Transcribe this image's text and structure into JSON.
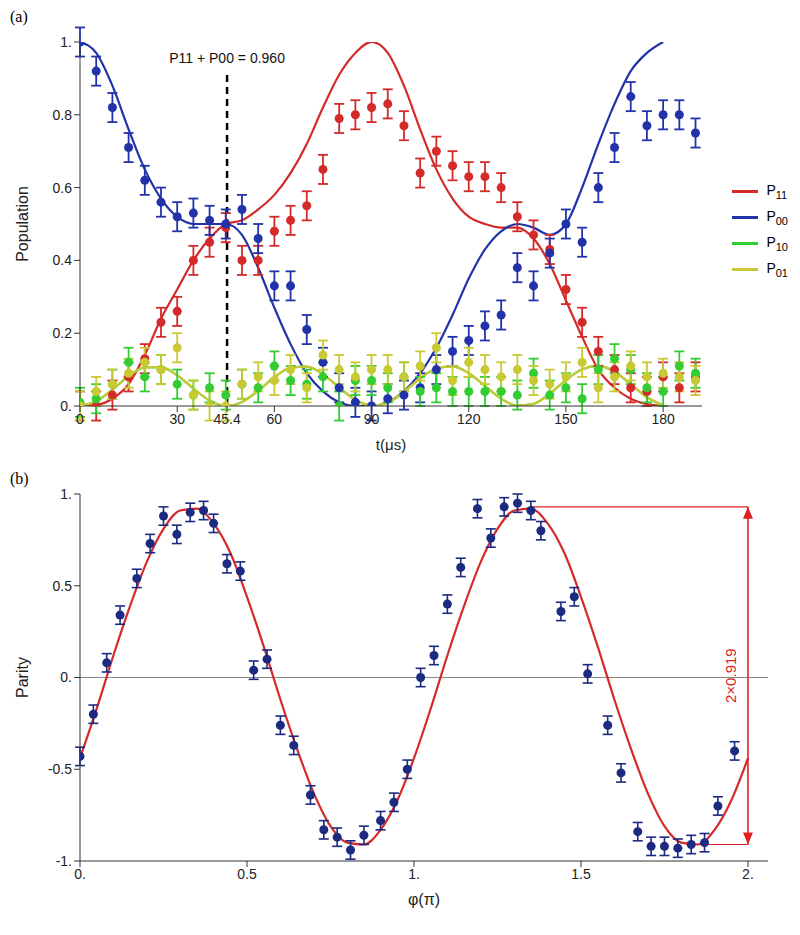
{
  "chart_data": [
    {
      "type": "scatter",
      "panel_label": "(a)",
      "x_label": "t(μs)",
      "y_label": "Population",
      "xlim": [
        0,
        192
      ],
      "xticks": [
        0,
        30,
        45.4,
        60,
        90,
        120,
        150,
        180
      ],
      "ylim": [
        0,
        1
      ],
      "yticks": [
        {
          "value": 0,
          "label": "0."
        },
        0.2,
        0.4,
        0.6,
        0.8,
        {
          "value": 1,
          "label": "1."
        }
      ],
      "legend": "right",
      "x": [
        0,
        5,
        10,
        15,
        20,
        25,
        30,
        35,
        40,
        45,
        50,
        55,
        60,
        65,
        70,
        75,
        80,
        85,
        90,
        95,
        100,
        105,
        110,
        115,
        120,
        125,
        130,
        135,
        140,
        145,
        150,
        155,
        160,
        165,
        170,
        175,
        180,
        185,
        190
      ],
      "fit_x": [
        0,
        5,
        10,
        15,
        20,
        25,
        30,
        35,
        40,
        45,
        50,
        55,
        60,
        65,
        70,
        75,
        80,
        85,
        90,
        95,
        100,
        105,
        110,
        115,
        120,
        125,
        130,
        135,
        140,
        145,
        150,
        155,
        160,
        165,
        170,
        175,
        180
      ],
      "series": [
        {
          "name": "P11",
          "color": "#d42a2a",
          "error": 0.04,
          "values": [
            0,
            0,
            0.03,
            0.08,
            0.13,
            0.23,
            0.26,
            0.4,
            0.45,
            0.49,
            0.4,
            0.4,
            0.48,
            0.51,
            0.55,
            0.65,
            0.79,
            0.8,
            0.82,
            0.83,
            0.77,
            0.64,
            0.7,
            0.66,
            0.63,
            0.63,
            0.6,
            0.52,
            0.47,
            0.43,
            0.32,
            0.23,
            0.15,
            0.1,
            0.05,
            0.04,
            0.08,
            0.05,
            0.08
          ],
          "fit": [
            0,
            0.003,
            0.02,
            0.06,
            0.14,
            0.24,
            0.32,
            0.4,
            0.46,
            0.5,
            0.51,
            0.54,
            0.58,
            0.64,
            0.72,
            0.82,
            0.91,
            0.97,
            1.0,
            0.97,
            0.88,
            0.76,
            0.65,
            0.57,
            0.52,
            0.5,
            0.49,
            0.49,
            0.46,
            0.39,
            0.29,
            0.19,
            0.1,
            0.05,
            0.02,
            0.005,
            0
          ]
        },
        {
          "name": "P00",
          "color": "#2233aa",
          "error": 0.04,
          "values": [
            1.0,
            0.92,
            0.82,
            0.71,
            0.62,
            0.56,
            0.52,
            0.53,
            0.51,
            0.5,
            0.54,
            0.46,
            0.33,
            0.33,
            0.21,
            0.12,
            0.05,
            0.01,
            0,
            0.02,
            0.03,
            0.05,
            0.1,
            0.15,
            0.18,
            0.22,
            0.25,
            0.38,
            0.33,
            0.42,
            0.5,
            0.45,
            0.6,
            0.71,
            0.85,
            0.77,
            0.8,
            0.8,
            0.75
          ],
          "fit": [
            1.0,
            0.97,
            0.88,
            0.76,
            0.65,
            0.57,
            0.52,
            0.5,
            0.5,
            0.5,
            0.47,
            0.38,
            0.27,
            0.17,
            0.09,
            0.04,
            0.01,
            0,
            0,
            0.01,
            0.04,
            0.09,
            0.16,
            0.25,
            0.35,
            0.43,
            0.48,
            0.5,
            0.49,
            0.47,
            0.5,
            0.6,
            0.72,
            0.83,
            0.92,
            0.97,
            1.0
          ]
        },
        {
          "name": "P10",
          "color": "#33cc33",
          "error": 0.04,
          "values": [
            0.01,
            0.02,
            0.06,
            0.12,
            0.08,
            0.1,
            0.06,
            0.03,
            0.05,
            0.03,
            0.06,
            0.05,
            0.11,
            0.07,
            0.06,
            0.08,
            0,
            0.07,
            0.07,
            0.05,
            0.08,
            0.04,
            0.05,
            0.04,
            0.04,
            0.04,
            0.04,
            0.03,
            0.09,
            0.03,
            0.05,
            0.02,
            0.1,
            0.13,
            0.1,
            0.05,
            0.04,
            0.11,
            0.09
          ],
          "fit": [
            0,
            0.013,
            0.045,
            0.082,
            0.106,
            0.107,
            0.084,
            0.048,
            0.015,
            0,
            0.011,
            0.042,
            0.079,
            0.105,
            0.108,
            0.087,
            0.051,
            0.017,
            0.001,
            0.009,
            0.039,
            0.076,
            0.103,
            0.109,
            0.09,
            0.055,
            0.02,
            0.001,
            0.006,
            0.034,
            0.071,
            0.101,
            0.11,
            0.094,
            0.06,
            0.024,
            0.002
          ]
        },
        {
          "name": "P01",
          "color": "#c9c934",
          "error": 0.04,
          "values": [
            0,
            0.04,
            0.06,
            0.09,
            0.12,
            0.1,
            0.16,
            0.03,
            0,
            0,
            0.06,
            0.08,
            0.07,
            0.1,
            0.05,
            0.14,
            0.1,
            0.08,
            0.1,
            0.1,
            0.08,
            0.11,
            0.16,
            0.07,
            0.12,
            0.1,
            0.08,
            0.1,
            0.07,
            0.06,
            0.08,
            0.12,
            0.05,
            0.08,
            0.11,
            0.08,
            0.09,
            0.08,
            0.07
          ],
          "fit": [
            0,
            0.013,
            0.045,
            0.082,
            0.106,
            0.107,
            0.084,
            0.048,
            0.015,
            0,
            0.011,
            0.042,
            0.079,
            0.105,
            0.108,
            0.087,
            0.051,
            0.017,
            0.001,
            0.009,
            0.039,
            0.076,
            0.103,
            0.109,
            0.09,
            0.055,
            0.02,
            0.001,
            0.006,
            0.034,
            0.071,
            0.101,
            0.11,
            0.094,
            0.06,
            0.024,
            0.002
          ]
        }
      ],
      "annotation": {
        "text": "P11 + P00 = 0.960",
        "x": 45.4,
        "y": 0.92,
        "line_style": "dashed"
      }
    },
    {
      "type": "scatter",
      "panel_label": "(b)",
      "x_label": "φ(π)",
      "y_label": "Parity",
      "xlim": [
        0,
        2.06
      ],
      "xticks": [
        {
          "value": 0,
          "label": "0."
        },
        0.5,
        {
          "value": 1,
          "label": "1."
        },
        1.5,
        {
          "value": 2,
          "label": "2."
        }
      ],
      "ylim": [
        -1,
        1
      ],
      "yticks": [
        {
          "value": -1,
          "label": "-1."
        },
        -0.5,
        {
          "value": 0,
          "label": "0."
        },
        0.5,
        {
          "value": 1,
          "label": "1."
        }
      ],
      "x": [
        0,
        0.04,
        0.08,
        0.12,
        0.17,
        0.21,
        0.25,
        0.29,
        0.33,
        0.37,
        0.4,
        0.44,
        0.48,
        0.52,
        0.56,
        0.6,
        0.64,
        0.69,
        0.73,
        0.77,
        0.81,
        0.85,
        0.9,
        0.94,
        0.98,
        1.02,
        1.06,
        1.1,
        1.14,
        1.19,
        1.23,
        1.27,
        1.31,
        1.35,
        1.38,
        1.44,
        1.48,
        1.52,
        1.58,
        1.62,
        1.67,
        1.71,
        1.75,
        1.79,
        1.83,
        1.87,
        1.91,
        1.96
      ],
      "fit_x": [
        0,
        0.05,
        0.1,
        0.15,
        0.2,
        0.25,
        0.3,
        0.35,
        0.4,
        0.45,
        0.5,
        0.55,
        0.6,
        0.65,
        0.7,
        0.75,
        0.8,
        0.85,
        0.9,
        0.95,
        1.0,
        1.05,
        1.1,
        1.15,
        1.2,
        1.25,
        1.3,
        1.35,
        1.4,
        1.45,
        1.5,
        1.55,
        1.6,
        1.65,
        1.7,
        1.75,
        1.8,
        1.85,
        1.9,
        1.95,
        2.0
      ],
      "series": [
        {
          "name": "Parity",
          "color": "#1c2a80",
          "error": 0.05,
          "values": [
            -0.43,
            -0.2,
            0.08,
            0.34,
            0.54,
            0.73,
            0.88,
            0.78,
            0.9,
            0.91,
            0.84,
            0.62,
            0.58,
            0.04,
            0.1,
            -0.26,
            -0.37,
            -0.64,
            -0.83,
            -0.87,
            -0.94,
            -0.86,
            -0.78,
            -0.68,
            -0.5,
            0.0,
            0.12,
            0.4,
            0.6,
            0.92,
            0.76,
            0.93,
            0.95,
            0.91,
            0.8,
            0.36,
            0.44,
            0.02,
            -0.26,
            -0.52,
            -0.84,
            -0.92,
            -0.92,
            -0.93,
            -0.91,
            -0.9,
            -0.7,
            -0.4
          ],
          "fit_color": "#d42a2a",
          "fit": [
            -0.44,
            -0.17,
            0.12,
            0.39,
            0.63,
            0.81,
            0.91,
            0.92,
            0.84,
            0.68,
            0.44,
            0.17,
            -0.12,
            -0.39,
            -0.63,
            -0.81,
            -0.9,
            -0.91,
            -0.83,
            -0.67,
            -0.44,
            -0.17,
            0.12,
            0.39,
            0.63,
            0.81,
            0.91,
            0.92,
            0.84,
            0.68,
            0.44,
            0.17,
            -0.12,
            -0.39,
            -0.63,
            -0.81,
            -0.9,
            -0.91,
            -0.83,
            -0.67,
            -0.44
          ]
        }
      ],
      "annotation": {
        "text": "2×0.919",
        "x": 2.0,
        "x_from_top": 1.35,
        "x_from_bottom": 1.85,
        "y_top": 0.93,
        "y_bottom": -0.91,
        "color": "#e02020"
      }
    }
  ]
}
